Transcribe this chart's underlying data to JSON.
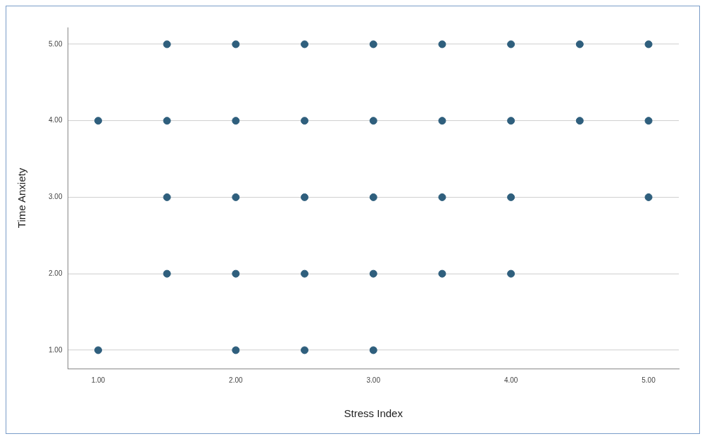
{
  "chart_data": {
    "type": "scatter",
    "xlabel": "Stress Index",
    "ylabel": "Time Anxiety",
    "x": [
      1.5,
      2,
      2.5,
      3,
      3.5,
      4,
      4.5,
      5,
      1,
      1.5,
      2,
      2.5,
      3,
      3.5,
      4,
      4.5,
      5,
      1.5,
      2,
      2.5,
      3,
      3.5,
      4,
      5,
      1.5,
      2,
      2.5,
      3,
      3.5,
      4,
      1,
      2,
      2.5,
      3
    ],
    "series": [
      {
        "color": "#2f5f7d",
        "values": [
          5,
          5,
          5,
          5,
          5,
          5,
          5,
          5,
          4,
          4,
          4,
          4,
          4,
          4,
          4,
          4,
          4,
          3,
          3,
          3,
          3,
          3,
          3,
          3,
          2,
          2,
          2,
          2,
          2,
          2,
          1,
          1,
          1,
          1
        ]
      }
    ],
    "xlim": [
      0.78,
      5.22
    ],
    "ylim": [
      0.76,
      5.22
    ],
    "xticks": [
      {
        "value": 1,
        "label": "1.00"
      },
      {
        "value": 2,
        "label": "2.00"
      },
      {
        "value": 3,
        "label": "3.00"
      },
      {
        "value": 4,
        "label": "4.00"
      },
      {
        "value": 5,
        "label": "5.00"
      }
    ],
    "yticks": [
      {
        "value": 1,
        "label": "1.00"
      },
      {
        "value": 2,
        "label": "2.00"
      },
      {
        "value": 3,
        "label": "3.00"
      },
      {
        "value": 4,
        "label": "4.00"
      },
      {
        "value": 5,
        "label": "5.00"
      }
    ],
    "grid": "y",
    "legend": false,
    "marker": "circle"
  }
}
